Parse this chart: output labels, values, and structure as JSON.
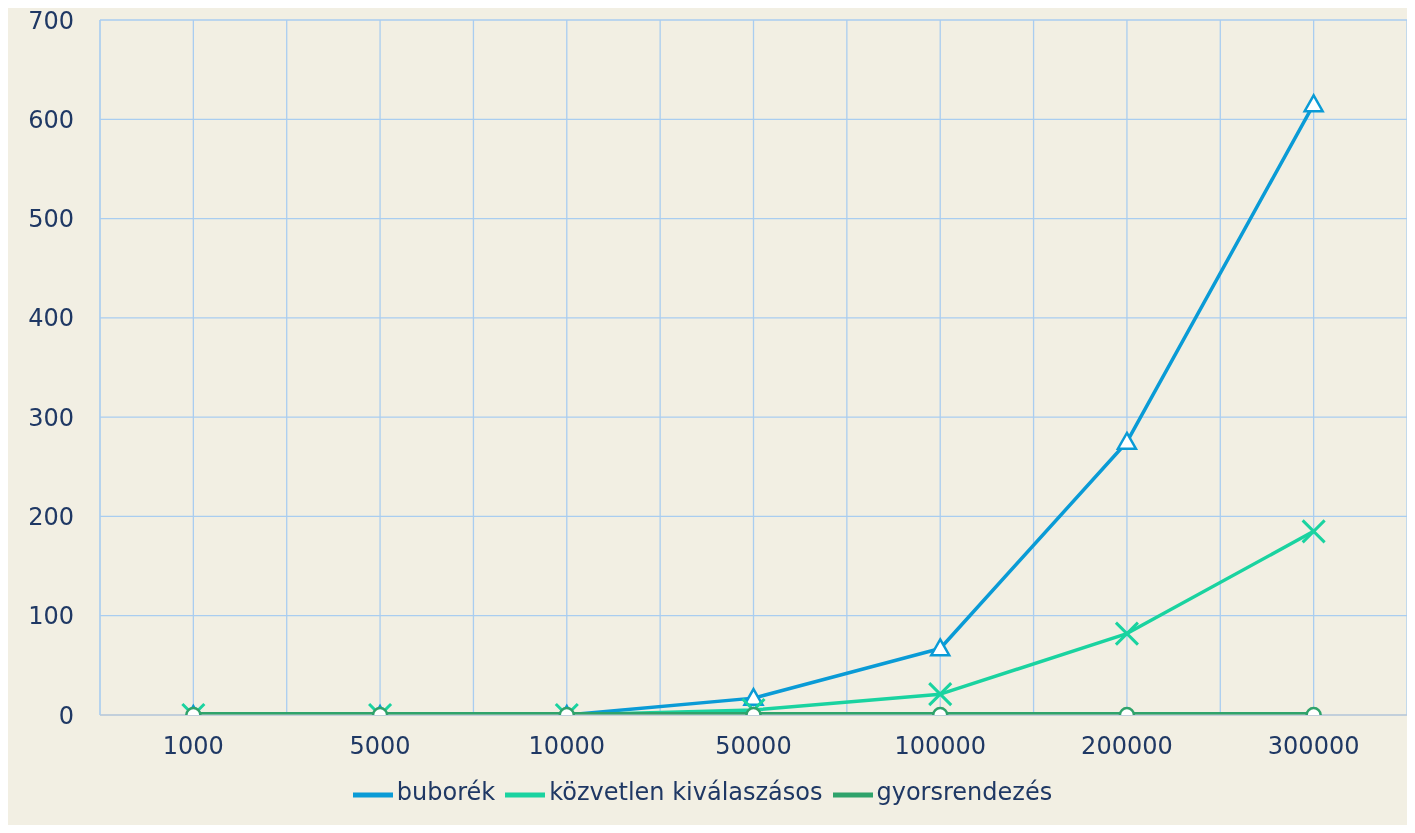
{
  "chart_data": {
    "type": "line",
    "categories": [
      "1000",
      "5000",
      "10000",
      "50000",
      "100000",
      "200000",
      "300000"
    ],
    "series": [
      {
        "name": "buborék",
        "color": "#0a9bd6",
        "marker": "triangle",
        "values": [
          0,
          0,
          0,
          17,
          67,
          275,
          615
        ]
      },
      {
        "name": "közvetlen kiválaszásos",
        "color": "#1ad3a0",
        "marker": "cross",
        "values": [
          0,
          0,
          0,
          5,
          21,
          82,
          185
        ]
      },
      {
        "name": "gyorsrendezés",
        "color": "#2fa36b",
        "marker": "circle",
        "values": [
          0,
          0,
          0,
          0,
          0,
          0,
          0
        ]
      }
    ],
    "ylim": [
      0,
      700
    ],
    "yticks": [
      0,
      100,
      200,
      300,
      400,
      500,
      600,
      700
    ],
    "grid": true,
    "legend": "bottom"
  }
}
